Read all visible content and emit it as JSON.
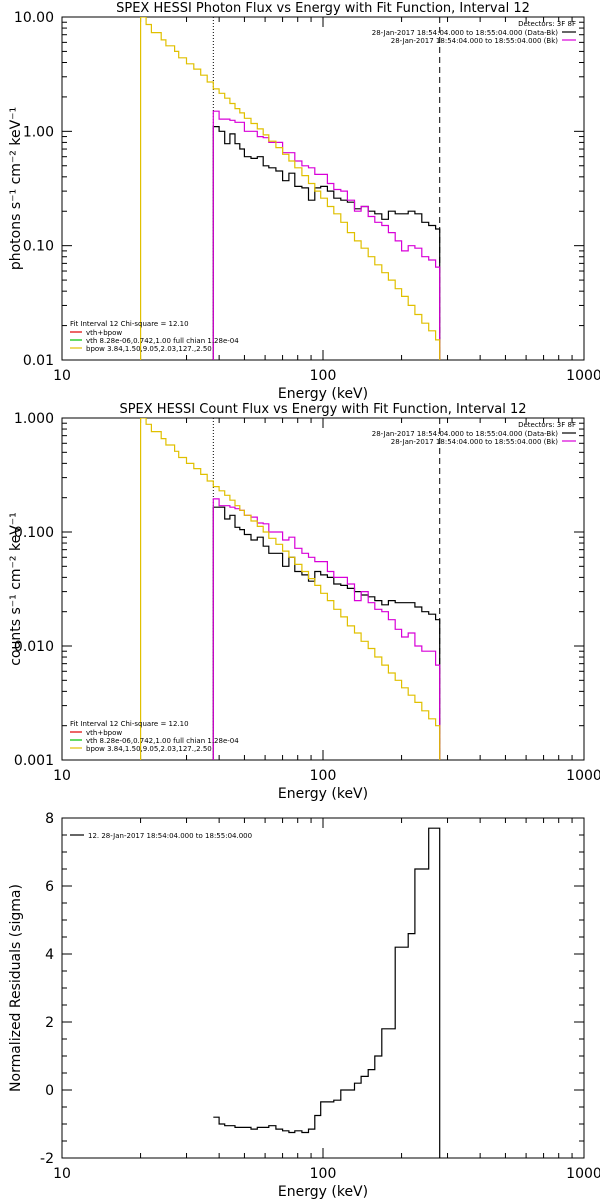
{
  "colors": {
    "background": "#ffffff",
    "axes": "#000000",
    "data": "#000000",
    "total_fit": "#d800d8",
    "vth": "#00c000",
    "bpow": "#e0c000",
    "vth_plus_bpow_legend": "#e00000"
  },
  "chart_data": [
    {
      "type": "line",
      "title": "SPEX HESSI Photon Flux vs Energy with Fit Function, Interval 12",
      "xlabel": "Energy (keV)",
      "ylabel": "photons s⁻¹ cm⁻² keV⁻¹",
      "xscale": "log",
      "yscale": "log",
      "xlim": [
        10,
        1000
      ],
      "ylim": [
        0.01,
        10
      ],
      "xticks": [
        "10",
        "100",
        "1000"
      ],
      "yticks": [
        "0.01",
        "0.10",
        "1.00",
        "10.00"
      ],
      "ytick_values": [
        0.01,
        0.1,
        1,
        10
      ],
      "legend_top_right": {
        "header": "Detectors: 3F 8F",
        "entries": [
          {
            "label": "28-Jan-2017 18:54:04.000 to 18:55:04.000 (Data-Bk)",
            "color": "#000000"
          },
          {
            "label": "28-Jan-2017 18:54:04.000 to 18:55:04.000 (Bk)",
            "color": "#d800d8"
          }
        ]
      },
      "legend_bottom_left": {
        "header": "Fit Interval 12   Chi-square = 12.10",
        "entries": [
          {
            "label": "vth+bpow",
            "color": "#e00000"
          },
          {
            "label": "vth 8.28e-06,0.742,1.00  full chian 1.28e-04",
            "color": "#00c000"
          },
          {
            "label": "bpow 3.84,1.50,9.05,2.03,127.,2.50",
            "color": "#e0c000"
          }
        ]
      },
      "vlines": [
        {
          "x": 38,
          "style": "dotted",
          "color": "#000000"
        },
        {
          "x": 280,
          "style": "dashed",
          "color": "#000000"
        }
      ],
      "series": [
        {
          "color": "#000000",
          "x": [
            38,
            40,
            42,
            44,
            46,
            48,
            50,
            53,
            56,
            59,
            62,
            66,
            70,
            74,
            78,
            83,
            88,
            93,
            98,
            104,
            110,
            117,
            124,
            132,
            140,
            149,
            158,
            168,
            178,
            189,
            200,
            212,
            225,
            239,
            254,
            270,
            280
          ],
          "y": [
            1.1,
            1.0,
            0.78,
            0.95,
            0.78,
            0.7,
            0.6,
            0.58,
            0.6,
            0.5,
            0.48,
            0.45,
            0.37,
            0.43,
            0.33,
            0.32,
            0.25,
            0.32,
            0.33,
            0.3,
            0.26,
            0.25,
            0.24,
            0.21,
            0.22,
            0.2,
            0.19,
            0.17,
            0.2,
            0.19,
            0.19,
            0.2,
            0.19,
            0.16,
            0.15,
            0.14,
            0.14
          ]
        },
        {
          "color": "#d800d8",
          "x": [
            38,
            40,
            42,
            44,
            46,
            48,
            50,
            53,
            56,
            59,
            62,
            66,
            70,
            74,
            78,
            83,
            88,
            93,
            98,
            104,
            110,
            117,
            124,
            132,
            140,
            149,
            158,
            168,
            178,
            189,
            200,
            212,
            225,
            239,
            254,
            270,
            280
          ],
          "y": [
            1.5,
            1.28,
            1.28,
            1.25,
            1.2,
            1.2,
            1.0,
            1.0,
            0.9,
            0.88,
            0.8,
            0.8,
            0.65,
            0.65,
            0.55,
            0.5,
            0.48,
            0.42,
            0.42,
            0.35,
            0.31,
            0.3,
            0.25,
            0.2,
            0.22,
            0.18,
            0.16,
            0.15,
            0.13,
            0.11,
            0.09,
            0.1,
            0.095,
            0.08,
            0.075,
            0.065,
            0.065
          ]
        },
        {
          "color": "#e0c000",
          "x": [
            20,
            21,
            22,
            24,
            25,
            27,
            28,
            30,
            32,
            34,
            36,
            38,
            40,
            42,
            44,
            46,
            48,
            50,
            53,
            56,
            59,
            62,
            66,
            70,
            74,
            78,
            83,
            88,
            93,
            98,
            104,
            110,
            117,
            124,
            132,
            140,
            149,
            158,
            168,
            178,
            189,
            200,
            212,
            225,
            239,
            254,
            270,
            280
          ],
          "y": [
            10.0,
            8.6,
            7.3,
            6.3,
            5.6,
            5.0,
            4.4,
            3.9,
            3.5,
            3.1,
            2.7,
            2.35,
            2.15,
            1.95,
            1.75,
            1.58,
            1.45,
            1.3,
            1.17,
            1.05,
            0.93,
            0.82,
            0.72,
            0.63,
            0.55,
            0.48,
            0.41,
            0.35,
            0.3,
            0.26,
            0.22,
            0.19,
            0.16,
            0.13,
            0.11,
            0.095,
            0.08,
            0.068,
            0.058,
            0.05,
            0.042,
            0.036,
            0.03,
            0.025,
            0.021,
            0.018,
            0.015,
            0.015
          ]
        }
      ]
    },
    {
      "type": "line",
      "title": "SPEX HESSI Count Flux vs Energy with Fit Function, Interval 12",
      "xlabel": "Energy (keV)",
      "ylabel": "counts s⁻¹ cm⁻² keV⁻¹",
      "xscale": "log",
      "yscale": "log",
      "xlim": [
        10,
        1000
      ],
      "ylim": [
        0.001,
        1
      ],
      "xticks": [
        "10",
        "100",
        "1000"
      ],
      "yticks": [
        "0.001",
        "0.010",
        "0.100",
        "1.000"
      ],
      "ytick_values": [
        0.001,
        0.01,
        0.1,
        1
      ],
      "legend_top_right": {
        "header": "Detectors: 3F 8F",
        "entries": [
          {
            "label": "28-Jan-2017 18:54:04.000 to 18:55:04.000 (Data-Bk)",
            "color": "#000000"
          },
          {
            "label": "28-Jan-2017 18:54:04.000 to 18:55:04.000 (Bk)",
            "color": "#d800d8"
          }
        ]
      },
      "legend_bottom_left": {
        "header": "Fit Interval 12   Chi-square = 12.10",
        "entries": [
          {
            "label": "vth+bpow",
            "color": "#e00000"
          },
          {
            "label": "vth 8.28e-06,0.742,1.00  full chian 1.28e-04",
            "color": "#00c000"
          },
          {
            "label": "bpow 3.84,1.50,9.05,2.03,127.,2.50",
            "color": "#e0c000"
          }
        ]
      },
      "vlines": [
        {
          "x": 38,
          "style": "dotted",
          "color": "#000000"
        },
        {
          "x": 280,
          "style": "dashed",
          "color": "#000000"
        }
      ],
      "series": [
        {
          "color": "#000000",
          "x": [
            38,
            40,
            42,
            44,
            46,
            48,
            50,
            53,
            56,
            59,
            62,
            66,
            70,
            74,
            78,
            83,
            88,
            93,
            98,
            104,
            110,
            117,
            124,
            132,
            140,
            149,
            158,
            168,
            178,
            189,
            200,
            212,
            225,
            239,
            254,
            270,
            280
          ],
          "y": [
            0.165,
            0.165,
            0.13,
            0.14,
            0.11,
            0.105,
            0.095,
            0.085,
            0.09,
            0.075,
            0.065,
            0.065,
            0.05,
            0.06,
            0.045,
            0.042,
            0.037,
            0.045,
            0.042,
            0.04,
            0.035,
            0.034,
            0.032,
            0.03,
            0.028,
            0.027,
            0.025,
            0.023,
            0.025,
            0.024,
            0.024,
            0.024,
            0.022,
            0.02,
            0.019,
            0.017,
            0.015
          ]
        },
        {
          "color": "#d800d8",
          "x": [
            38,
            40,
            42,
            44,
            46,
            48,
            50,
            53,
            56,
            59,
            62,
            66,
            70,
            74,
            78,
            83,
            88,
            93,
            98,
            104,
            110,
            117,
            124,
            132,
            140,
            149,
            158,
            168,
            178,
            189,
            200,
            212,
            225,
            239,
            254,
            270,
            280
          ],
          "y": [
            0.195,
            0.17,
            0.17,
            0.165,
            0.16,
            0.155,
            0.14,
            0.135,
            0.12,
            0.118,
            0.1,
            0.1,
            0.085,
            0.09,
            0.072,
            0.065,
            0.06,
            0.055,
            0.055,
            0.045,
            0.04,
            0.04,
            0.035,
            0.025,
            0.03,
            0.024,
            0.021,
            0.02,
            0.017,
            0.014,
            0.012,
            0.013,
            0.01,
            0.009,
            0.009,
            0.0068,
            0.0068
          ]
        },
        {
          "color": "#e0c000",
          "x": [
            20,
            21,
            22,
            24,
            25,
            27,
            28,
            30,
            32,
            34,
            36,
            38,
            40,
            42,
            44,
            46,
            48,
            50,
            53,
            56,
            59,
            62,
            66,
            70,
            74,
            78,
            83,
            88,
            93,
            98,
            104,
            110,
            117,
            124,
            132,
            140,
            149,
            158,
            168,
            178,
            189,
            200,
            212,
            225,
            239,
            254,
            270,
            280
          ],
          "y": [
            1.0,
            0.88,
            0.76,
            0.66,
            0.58,
            0.51,
            0.45,
            0.4,
            0.36,
            0.32,
            0.28,
            0.25,
            0.23,
            0.21,
            0.19,
            0.17,
            0.155,
            0.14,
            0.125,
            0.112,
            0.1,
            0.088,
            0.078,
            0.068,
            0.06,
            0.052,
            0.045,
            0.039,
            0.034,
            0.029,
            0.025,
            0.021,
            0.018,
            0.015,
            0.013,
            0.011,
            0.0095,
            0.008,
            0.0068,
            0.0058,
            0.005,
            0.0043,
            0.0037,
            0.0032,
            0.0027,
            0.0023,
            0.002,
            0.002
          ]
        }
      ]
    },
    {
      "type": "line",
      "title": "",
      "xlabel": "Energy (keV)",
      "ylabel": "Normalized Residuals (sigma)",
      "xscale": "log",
      "yscale": "linear",
      "xlim": [
        10,
        1000
      ],
      "ylim": [
        -2,
        8
      ],
      "xticks": [
        "10",
        "100",
        "1000"
      ],
      "yticks": [
        "-2",
        "0",
        "2",
        "4",
        "6",
        "8"
      ],
      "ytick_values": [
        -2,
        0,
        2,
        4,
        6,
        8
      ],
      "legend_top_left": {
        "entries": [
          {
            "label": "12. 28-Jan-2017 18:54:04.000 to 18:55:04.000",
            "color": "#000000"
          }
        ]
      },
      "series": [
        {
          "color": "#000000",
          "x": [
            38,
            40,
            42,
            44,
            46,
            48,
            50,
            53,
            56,
            59,
            62,
            66,
            70,
            74,
            78,
            83,
            88,
            93,
            98,
            104,
            110,
            117,
            124,
            132,
            140,
            149,
            158,
            168,
            178,
            189,
            200,
            212,
            225,
            239,
            254,
            270,
            280
          ],
          "y": [
            -0.8,
            -1.0,
            -1.05,
            -1.05,
            -1.1,
            -1.1,
            -1.1,
            -1.15,
            -1.1,
            -1.1,
            -1.05,
            -1.15,
            -1.2,
            -1.25,
            -1.2,
            -1.25,
            -1.15,
            -0.75,
            -0.35,
            -0.35,
            -0.3,
            0.0,
            0.0,
            0.2,
            0.4,
            0.6,
            1.0,
            1.8,
            1.8,
            4.2,
            4.2,
            4.6,
            6.5,
            6.5,
            7.7,
            7.7,
            7.7
          ]
        }
      ]
    }
  ]
}
